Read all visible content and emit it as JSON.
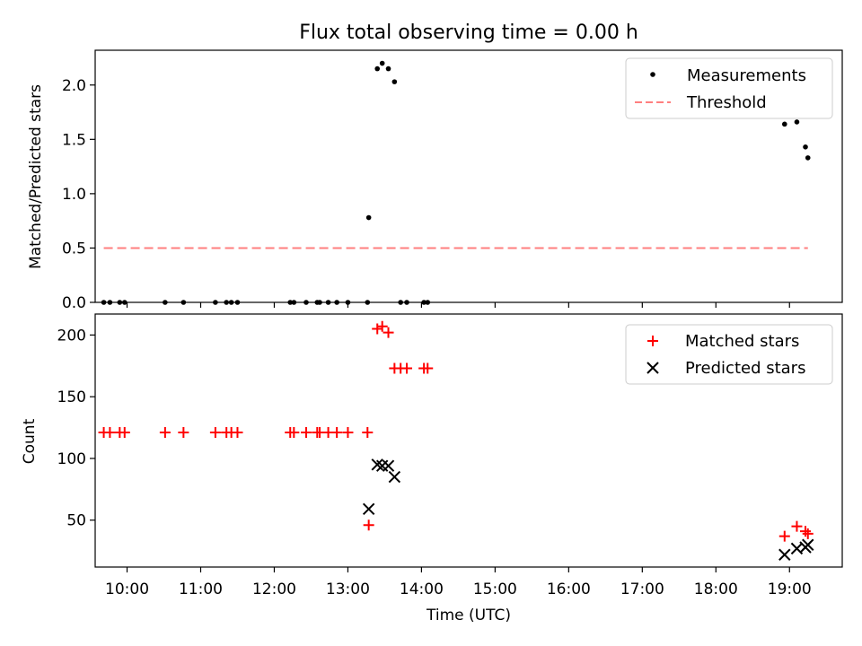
{
  "chart_data": [
    {
      "type": "scatter",
      "title": "Flux total observing time = 0.00 h",
      "xlabel": "",
      "ylabel": "Matched/Predicted stars",
      "xlim": [
        "09:34",
        "19:43"
      ],
      "ylim": [
        0,
        2.32
      ],
      "yticks": [
        0.0,
        0.5,
        1.0,
        1.5,
        2.0
      ],
      "ytick_labels": [
        "0.0",
        "0.5",
        "1.0",
        "1.5",
        "2.0"
      ],
      "legend_position": "top-right",
      "series": [
        {
          "name": "Measurements",
          "marker": "dot",
          "color": "#000000",
          "points": [
            [
              "09:41",
              0
            ],
            [
              "09:46",
              0
            ],
            [
              "09:54",
              0
            ],
            [
              "09:58",
              0
            ],
            [
              "10:31",
              0
            ],
            [
              "10:46",
              0
            ],
            [
              "11:12",
              0
            ],
            [
              "11:21",
              0
            ],
            [
              "11:25",
              0
            ],
            [
              "11:30",
              0
            ],
            [
              "12:13",
              0
            ],
            [
              "12:16",
              0
            ],
            [
              "12:26",
              0
            ],
            [
              "12:35",
              0
            ],
            [
              "12:37",
              0
            ],
            [
              "12:44",
              0
            ],
            [
              "12:51",
              0
            ],
            [
              "13:00",
              0
            ],
            [
              "13:16",
              0
            ],
            [
              "13:43",
              0
            ],
            [
              "13:48",
              0
            ],
            [
              "14:02",
              0
            ],
            [
              "14:05",
              0
            ],
            [
              "13:17",
              0.78
            ],
            [
              "13:24",
              2.15
            ],
            [
              "13:28",
              2.2
            ],
            [
              "13:33",
              2.15
            ],
            [
              "13:38",
              2.03
            ],
            [
              "18:56",
              1.64
            ],
            [
              "19:06",
              1.66
            ],
            [
              "19:13",
              1.43
            ],
            [
              "19:15",
              1.33
            ]
          ]
        },
        {
          "name": "Threshold",
          "style": "dashed",
          "color": "#ff7f7f",
          "points": [
            [
              "09:41",
              0.5
            ],
            [
              "19:15",
              0.5
            ]
          ]
        }
      ]
    },
    {
      "type": "scatter",
      "title": "",
      "xlabel": "Time (UTC)",
      "ylabel": "Count",
      "xlim": [
        "09:34",
        "19:43"
      ],
      "ylim": [
        12,
        217
      ],
      "yticks": [
        50,
        100,
        150,
        200
      ],
      "ytick_labels": [
        "50",
        "100",
        "150",
        "200"
      ],
      "xticks": [
        "10:00",
        "11:00",
        "12:00",
        "13:00",
        "14:00",
        "15:00",
        "16:00",
        "17:00",
        "18:00",
        "19:00"
      ],
      "legend_position": "top-right",
      "series": [
        {
          "name": "Matched stars",
          "marker": "plus",
          "color": "#ff0000",
          "points": [
            [
              "09:41",
              121
            ],
            [
              "09:46",
              121
            ],
            [
              "09:54",
              121
            ],
            [
              "09:58",
              121
            ],
            [
              "10:31",
              121
            ],
            [
              "10:46",
              121
            ],
            [
              "11:12",
              121
            ],
            [
              "11:21",
              121
            ],
            [
              "11:25",
              121
            ],
            [
              "11:30",
              121
            ],
            [
              "12:13",
              121
            ],
            [
              "12:16",
              121
            ],
            [
              "12:26",
              121
            ],
            [
              "12:35",
              121
            ],
            [
              "12:37",
              121
            ],
            [
              "12:44",
              121
            ],
            [
              "12:51",
              121
            ],
            [
              "13:00",
              121
            ],
            [
              "13:16",
              121
            ],
            [
              "13:17",
              46
            ],
            [
              "13:24",
              205
            ],
            [
              "13:28",
              207
            ],
            [
              "13:33",
              202
            ],
            [
              "13:38",
              173
            ],
            [
              "13:43",
              173
            ],
            [
              "13:48",
              173
            ],
            [
              "14:02",
              173
            ],
            [
              "14:05",
              173
            ],
            [
              "18:56",
              37
            ],
            [
              "19:06",
              45
            ],
            [
              "19:13",
              41
            ],
            [
              "19:15",
              39
            ]
          ]
        },
        {
          "name": "Predicted stars",
          "marker": "x",
          "color": "#000000",
          "points": [
            [
              "13:17",
              59
            ],
            [
              "13:24",
              95
            ],
            [
              "13:28",
              94
            ],
            [
              "13:33",
              94
            ],
            [
              "13:38",
              85
            ],
            [
              "18:56",
              22
            ],
            [
              "19:06",
              27
            ],
            [
              "19:13",
              28
            ],
            [
              "19:15",
              30
            ]
          ]
        }
      ]
    }
  ]
}
